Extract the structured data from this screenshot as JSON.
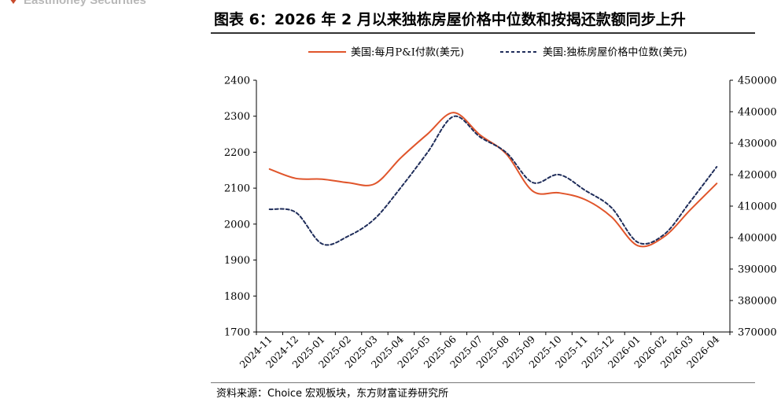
{
  "brand": {
    "text": "Eastmoney Securities"
  },
  "title": "图表 6：2026 年 2 月以来独栋房屋价格中位数和按揭还款额同步上升",
  "source": "资料来源：Choice 宏观板块，东方财富证券研究所",
  "colors": {
    "payment": "#e0552b",
    "price": "#1f2d5a",
    "axis": "#000000"
  },
  "chart_data": {
    "type": "line",
    "legend_position": "top",
    "grid": false,
    "x": [
      "2024-11",
      "2024-12",
      "2025-01",
      "2025-02",
      "2025-03",
      "2025-04",
      "2025-05",
      "2025-06",
      "2025-07",
      "2025-08",
      "2025-09",
      "2025-10",
      "2025-11",
      "2025-12",
      "2026-01",
      "2026-02",
      "2026-03",
      "2026-04"
    ],
    "y_left": {
      "ylim": [
        1700,
        2400
      ],
      "ticks": [
        1700,
        1800,
        1900,
        2000,
        2100,
        2200,
        2300,
        2400
      ]
    },
    "y_right": {
      "ylim": [
        370000,
        450000
      ],
      "ticks": [
        370000,
        380000,
        390000,
        400000,
        410000,
        420000,
        430000,
        440000,
        450000
      ]
    },
    "series": [
      {
        "name": "美国:每月P&I付款(美元)",
        "axis": "left",
        "style": "solid",
        "color": "#e0552b",
        "values": [
          2153,
          2127,
          2125,
          2115,
          2112,
          2185,
          2250,
          2310,
          2248,
          2195,
          2092,
          2087,
          2068,
          2020,
          1940,
          1965,
          2040,
          2113
        ]
      },
      {
        "name": "美国:独栋房屋价格中位数(美元)",
        "axis": "right",
        "style": "dashed",
        "color": "#1f2d5a",
        "values": [
          409000,
          408000,
          398000,
          400500,
          406000,
          416000,
          427000,
          438500,
          432000,
          427000,
          417500,
          420000,
          415000,
          409500,
          398500,
          401000,
          411500,
          422500
        ]
      }
    ]
  }
}
